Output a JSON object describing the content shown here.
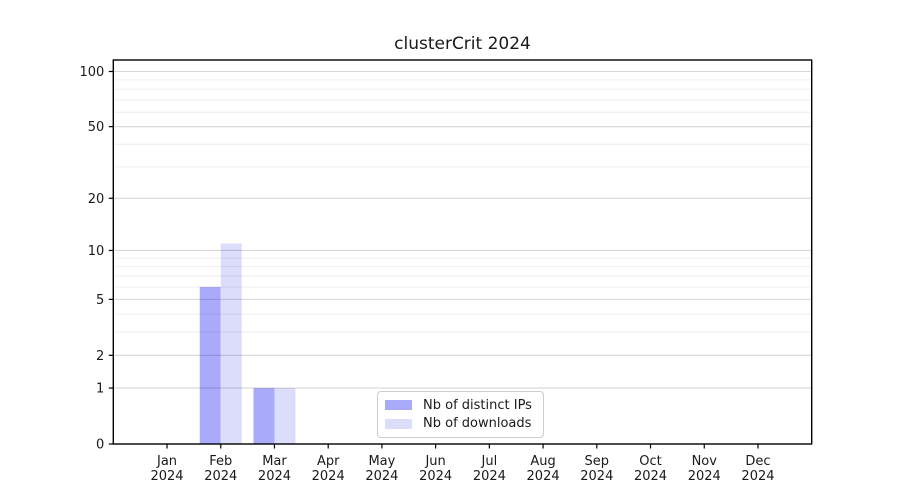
{
  "chart_data": {
    "type": "bar",
    "title": "clusterCrit 2024",
    "year_label": "2024",
    "categories": [
      "Jan",
      "Feb",
      "Mar",
      "Apr",
      "May",
      "Jun",
      "Jul",
      "Aug",
      "Sep",
      "Oct",
      "Nov",
      "Dec"
    ],
    "series": [
      {
        "name": "Nb of distinct IPs",
        "color": "#aaaafa",
        "values": [
          0,
          6,
          1,
          0,
          0,
          0,
          0,
          0,
          0,
          0,
          0,
          0
        ]
      },
      {
        "name": "Nb of downloads",
        "color": "#dcdcfb",
        "values": [
          0,
          11,
          1,
          0,
          0,
          0,
          0,
          0,
          0,
          0,
          0,
          0
        ]
      }
    ],
    "y_scale": "log1p",
    "y_major_ticks": [
      0,
      1,
      2,
      5,
      10,
      20,
      50,
      100
    ],
    "y_minor_ticks": [
      3,
      4,
      6,
      7,
      8,
      9,
      30,
      40,
      60,
      70,
      80,
      90
    ],
    "ylim": [
      0,
      117
    ],
    "xlabel": "",
    "ylabel": "",
    "grid": "horizontal-only",
    "legend_position": "bottom-center-inside"
  },
  "colors": {
    "background": "#ffffff",
    "axis": "#000000",
    "tick_label": "#1a1a1a",
    "grid_major": "rgba(0,0,0,0.16)",
    "grid_minor": "rgba(0,0,0,0.07)",
    "legend_border": "#cccccc",
    "legend_background": "#ffffff"
  }
}
